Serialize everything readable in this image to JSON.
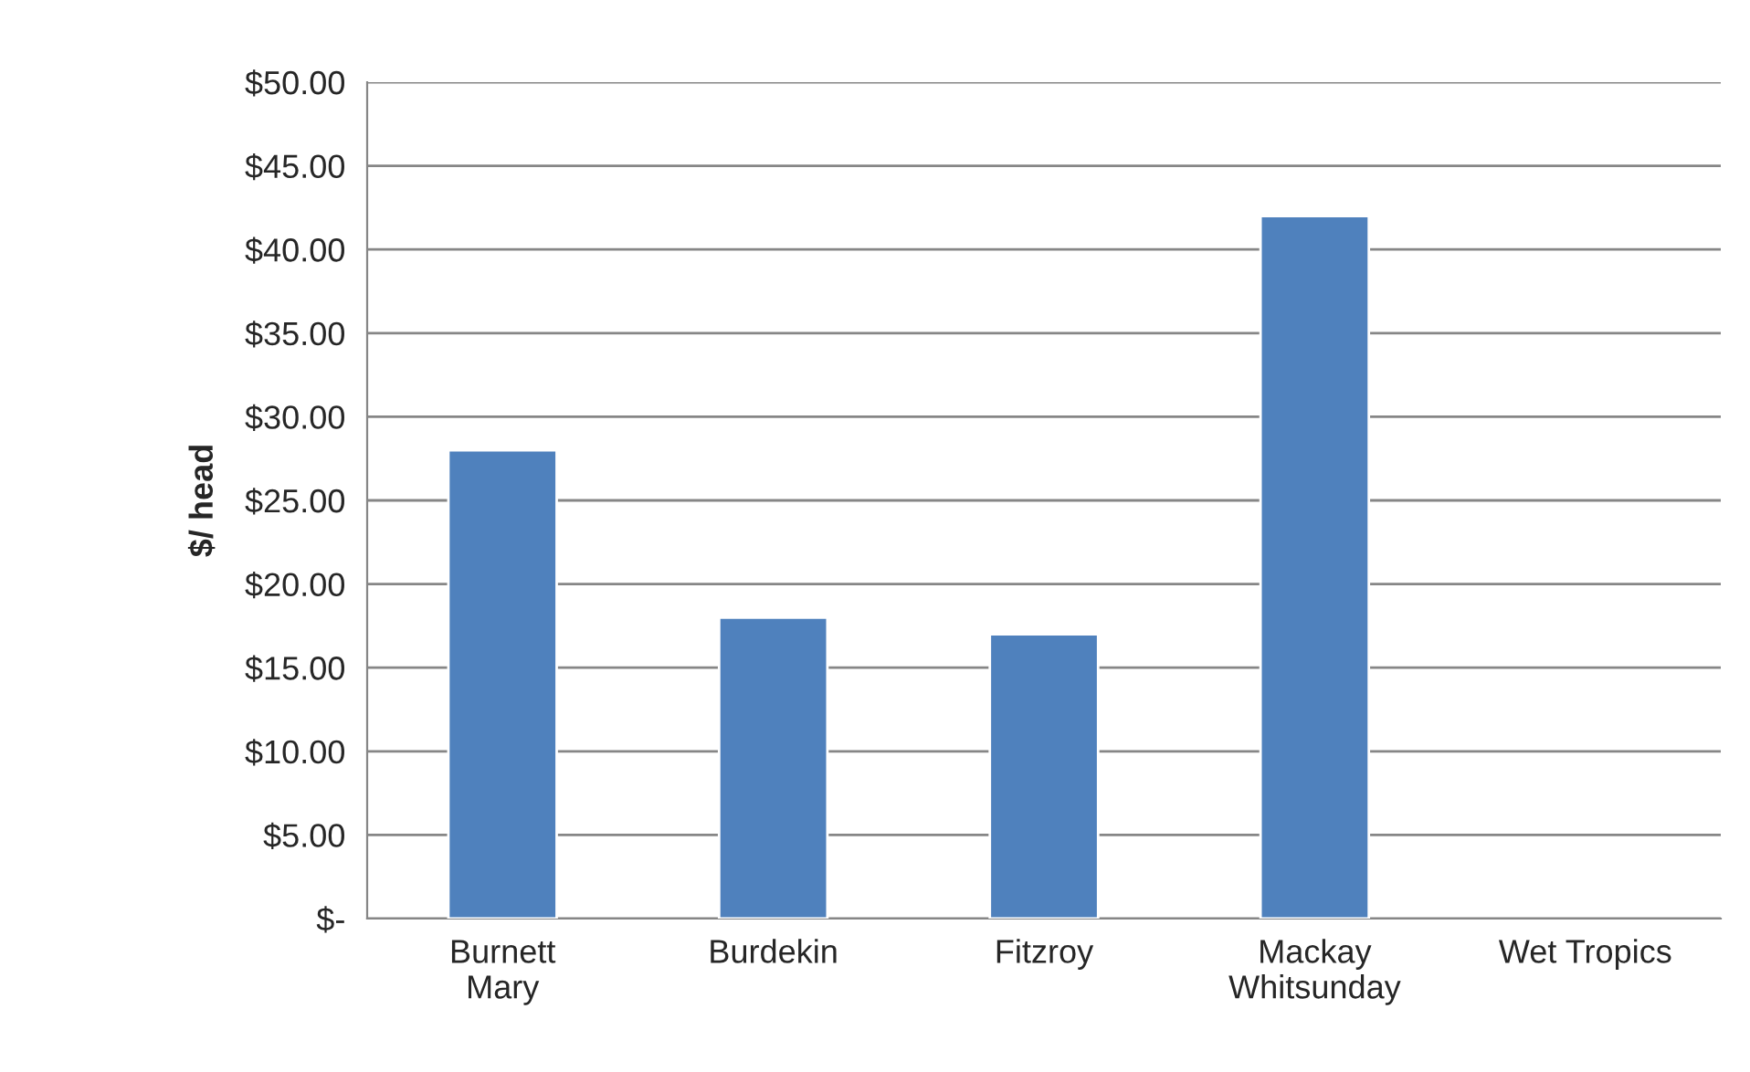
{
  "chart_data": {
    "type": "bar",
    "ylabel": "$/ head",
    "categories": [
      "Burnett\nMary",
      "Burdekin",
      "Fitzroy",
      "Mackay\nWhitsunday",
      "Wet Tropics"
    ],
    "values": [
      28,
      18,
      17,
      42,
      null
    ],
    "color": "#4f81bd",
    "ylim": [
      0,
      50
    ],
    "yticks": [
      {
        "value": 0,
        "label": "$-"
      },
      {
        "value": 5,
        "label": "$5.00"
      },
      {
        "value": 10,
        "label": "$10.00"
      },
      {
        "value": 15,
        "label": "$15.00"
      },
      {
        "value": 20,
        "label": "$20.00"
      },
      {
        "value": 25,
        "label": "$25.00"
      },
      {
        "value": 30,
        "label": "$30.00"
      },
      {
        "value": 35,
        "label": "$35.00"
      },
      {
        "value": 40,
        "label": "$40.00"
      },
      {
        "value": 45,
        "label": "$45.00"
      },
      {
        "value": 50,
        "label": "$50.00"
      }
    ],
    "grid": "y"
  }
}
